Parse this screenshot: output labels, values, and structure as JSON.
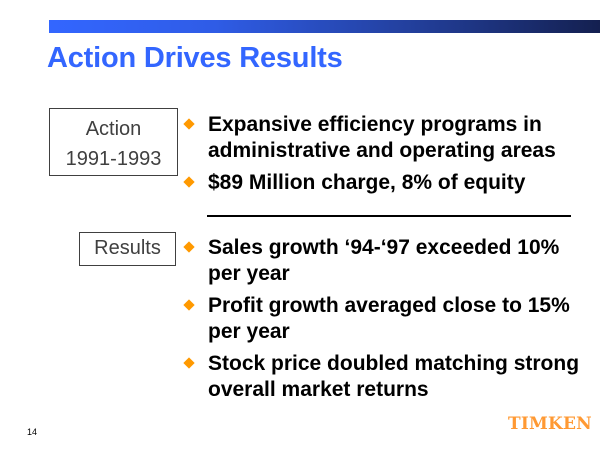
{
  "slide": {
    "title": "Action Drives Results",
    "page_number": "14",
    "logo_text": "TIMKEN",
    "colors": {
      "accent_blue": "#3366ff",
      "bar_dark": "#142050",
      "bullet_orange": "#ff9900",
      "logo_orange": "#ff9933",
      "label_gray": "#404040"
    },
    "bullet_icon": "orange-diamond"
  },
  "sections": {
    "action": {
      "label_line1": "Action",
      "label_line2": "1991-1993",
      "bullets": [
        {
          "text": "Expansive efficiency programs in administrative and operating areas"
        },
        {
          "text": "$89 Million charge, 8% of equity"
        }
      ]
    },
    "results": {
      "label": "Results",
      "bullets": [
        {
          "text": "Sales growth ‘94-‘97 exceeded 10% per year"
        },
        {
          "text": "Profit growth averaged close to 15% per year"
        },
        {
          "text": "Stock price doubled matching strong overall market returns"
        }
      ]
    }
  }
}
